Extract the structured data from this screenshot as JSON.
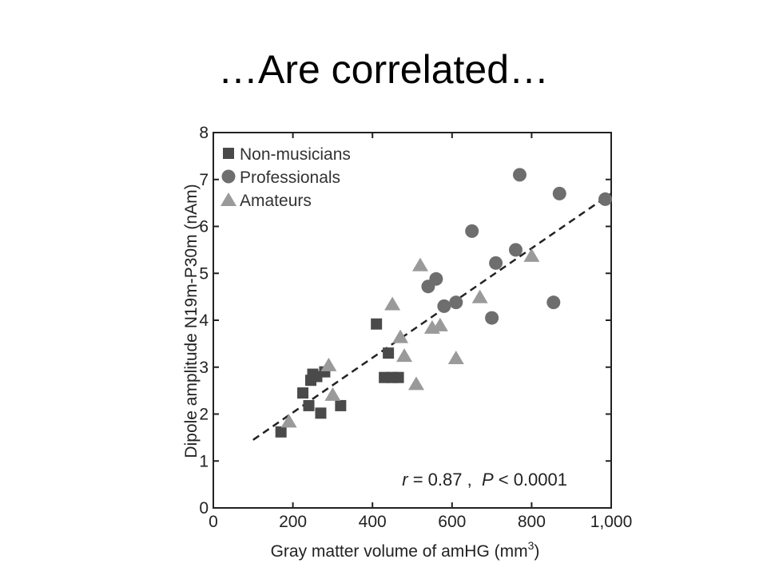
{
  "slide": {
    "title": "…Are correlated…"
  },
  "chart_data": {
    "type": "scatter",
    "title": "",
    "xlabel": "Gray matter volume of amHG (mm",
    "xlabel_sup": "3",
    "xlabel_close": ")",
    "ylabel": "Dipole amplitude N19m-P30m (nAm)",
    "xlim": [
      0,
      1000
    ],
    "ylim": [
      0,
      8
    ],
    "x_ticks": [
      0,
      200,
      400,
      600,
      800,
      1000
    ],
    "x_tick_labels": [
      "0",
      "200",
      "400",
      "600",
      "800",
      "1,000"
    ],
    "y_ticks": [
      0,
      1,
      2,
      3,
      4,
      5,
      6,
      7,
      8
    ],
    "y_tick_labels": [
      "0",
      "1",
      "2",
      "3",
      "4",
      "5",
      "6",
      "7",
      "8"
    ],
    "grid": false,
    "legend_position": "top-left",
    "annotation": {
      "r_label": "r",
      "r_text": " = 0.87 ,  ",
      "p_label": "P",
      "p_text": " < 0.0001"
    },
    "trendline": {
      "style": "dashed",
      "x": [
        100,
        1000
      ],
      "y": [
        1.45,
        6.7
      ]
    },
    "series": [
      {
        "name": "Non-musicians",
        "marker": "square",
        "color": "#4a4a4a",
        "points": [
          [
            170,
            1.62
          ],
          [
            225,
            2.45
          ],
          [
            240,
            2.18
          ],
          [
            245,
            2.72
          ],
          [
            250,
            2.85
          ],
          [
            260,
            2.8
          ],
          [
            270,
            2.02
          ],
          [
            280,
            2.9
          ],
          [
            320,
            2.18
          ],
          [
            410,
            3.92
          ],
          [
            430,
            2.78
          ],
          [
            440,
            3.3
          ],
          [
            450,
            2.78
          ],
          [
            465,
            2.78
          ]
        ]
      },
      {
        "name": "Professionals",
        "marker": "circle",
        "color": "#6e6e6e",
        "points": [
          [
            540,
            4.72
          ],
          [
            560,
            4.88
          ],
          [
            580,
            4.3
          ],
          [
            610,
            4.38
          ],
          [
            650,
            5.9
          ],
          [
            700,
            4.05
          ],
          [
            710,
            5.22
          ],
          [
            760,
            5.5
          ],
          [
            770,
            7.1
          ],
          [
            855,
            4.38
          ],
          [
            870,
            6.7
          ],
          [
            985,
            6.58
          ]
        ]
      },
      {
        "name": "Amateurs",
        "marker": "triangle",
        "color": "#9a9a9a",
        "points": [
          [
            190,
            1.85
          ],
          [
            290,
            3.05
          ],
          [
            300,
            2.42
          ],
          [
            450,
            4.35
          ],
          [
            470,
            3.65
          ],
          [
            480,
            3.25
          ],
          [
            510,
            2.65
          ],
          [
            520,
            5.18
          ],
          [
            550,
            3.85
          ],
          [
            570,
            3.9
          ],
          [
            610,
            3.2
          ],
          [
            670,
            4.5
          ],
          [
            800,
            5.38
          ]
        ]
      }
    ]
  }
}
